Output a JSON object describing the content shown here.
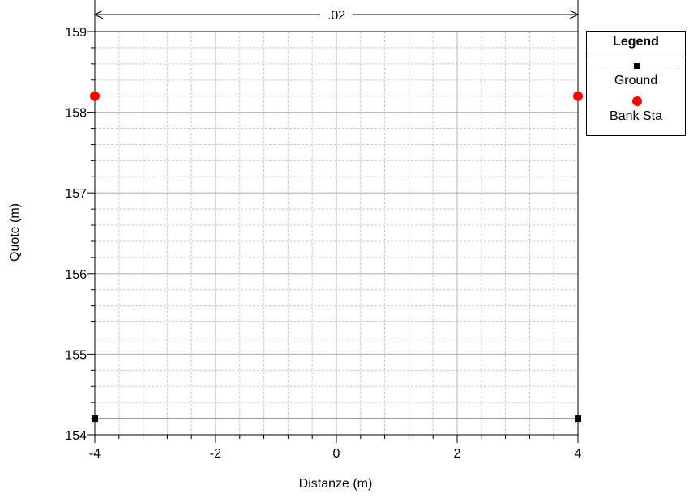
{
  "chart_data": {
    "type": "line",
    "xlabel": "Distanze (m)",
    "ylabel": "Quote (m)",
    "xlim": [
      -4,
      4
    ],
    "ylim": [
      154,
      159
    ],
    "x_ticks": [
      -4,
      -2,
      0,
      2,
      4
    ],
    "y_ticks": [
      154,
      155,
      156,
      157,
      158,
      159
    ],
    "x_tick_labels": [
      "-4",
      "-2",
      "0",
      "2",
      "4"
    ],
    "y_tick_labels": [
      "154",
      "155",
      "156",
      "157",
      "158",
      "159"
    ],
    "grid": true,
    "legend_position": "right",
    "series": [
      {
        "name": "Ground",
        "type": "line",
        "marker": "square",
        "color": "#000000",
        "x": [
          -4,
          4
        ],
        "y": [
          154.2,
          154.2
        ]
      },
      {
        "name": "Bank Sta",
        "type": "scatter",
        "marker": "circle",
        "color": "#ff0000",
        "x": [
          -4,
          4
        ],
        "y": [
          158.2,
          158.2
        ]
      }
    ],
    "annotations": [
      {
        "text": ".02",
        "type": "dimension",
        "x_from": -4,
        "x_to": 4
      }
    ]
  },
  "legend": {
    "title": "Legend",
    "items": [
      {
        "label": "Ground"
      },
      {
        "label": "Bank Sta"
      }
    ]
  }
}
